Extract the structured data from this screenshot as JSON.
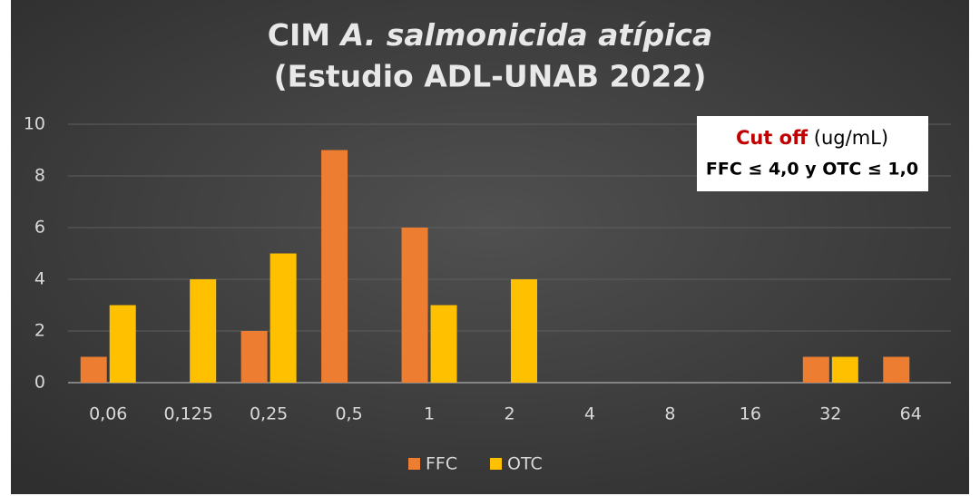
{
  "chart_data": {
    "type": "bar",
    "title": {
      "prefix": "CIM",
      "italic": "A. salmonicida atípica",
      "line2": "(Estudio ADL-UNAB 2022)"
    },
    "annotation": {
      "highlight": "Cut off",
      "unit": "(ug/mL)",
      "text": "FFC ≤ 4,0 y OTC ≤ 1,0"
    },
    "categories": [
      "0,06",
      "0,125",
      "0,25",
      "0,5",
      "1",
      "2",
      "4",
      "8",
      "16",
      "32",
      "64"
    ],
    "series": [
      {
        "name": "FFC",
        "color": "#ed7d31",
        "values": [
          1,
          0,
          2,
          9,
          6,
          0,
          0,
          0,
          0,
          1,
          1
        ]
      },
      {
        "name": "OTC",
        "color": "#ffc000",
        "values": [
          3,
          4,
          5,
          0,
          3,
          4,
          0,
          0,
          0,
          1,
          0
        ]
      }
    ],
    "ylim": [
      0,
      10
    ],
    "yticks": [
      0,
      2,
      4,
      6,
      8,
      10
    ],
    "grid": true,
    "legend": "bottom"
  }
}
